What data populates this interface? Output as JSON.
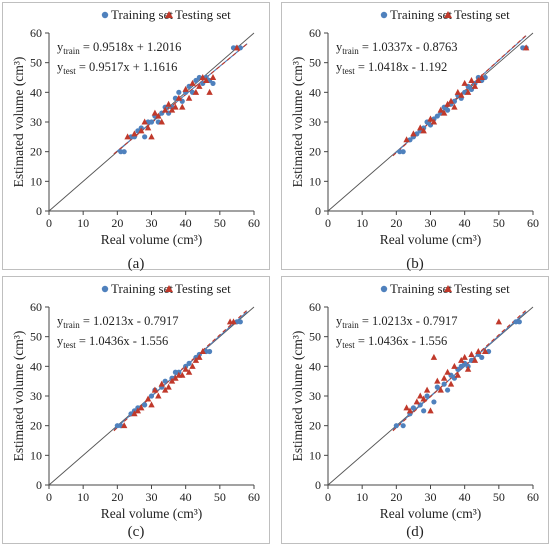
{
  "chart_data": [
    {
      "type": "scatter",
      "caption": "(a)",
      "xlabel": "Real volume (cm³)",
      "ylabel": "Estimated volume (cm³)",
      "xlim": [
        0,
        60
      ],
      "ylim": [
        0,
        60
      ],
      "xticks": [
        "0",
        "10",
        "20",
        "30",
        "40",
        "50",
        "60"
      ],
      "yticks": [
        "0",
        "10",
        "20",
        "30",
        "40",
        "50",
        "60"
      ],
      "grid": false,
      "legend_position": "top",
      "series": [
        {
          "name": "Training set",
          "marker": "circle",
          "color": "#4f81bd",
          "trend_style": "solid",
          "fit": {
            "label": "y_train = 0.9518x + 1.2016",
            "sub": "train",
            "slope": 0.9518,
            "intercept": 1.2016
          },
          "points": [
            [
              21,
              20
            ],
            [
              22,
              20
            ],
            [
              24,
              25
            ],
            [
              25,
              25
            ],
            [
              26,
              27
            ],
            [
              27,
              28
            ],
            [
              28,
              25
            ],
            [
              29,
              30
            ],
            [
              30,
              30
            ],
            [
              31,
              32
            ],
            [
              32,
              30
            ],
            [
              33,
              33
            ],
            [
              34,
              35
            ],
            [
              35,
              33
            ],
            [
              36,
              35
            ],
            [
              37,
              38
            ],
            [
              38,
              40
            ],
            [
              39,
              37
            ],
            [
              40,
              40
            ],
            [
              41,
              42
            ],
            [
              42,
              40
            ],
            [
              43,
              44
            ],
            [
              44,
              45
            ],
            [
              45,
              43
            ],
            [
              46,
              45
            ],
            [
              47,
              44
            ],
            [
              48,
              43
            ],
            [
              54,
              55
            ],
            [
              55,
              55
            ],
            [
              56,
              55
            ]
          ]
        },
        {
          "name": "Testing set",
          "marker": "triangle",
          "color": "#c0392b",
          "trend_style": "dashed",
          "fit": {
            "label": "y_test = 0.9517x + 1.1616",
            "sub": "test",
            "slope": 0.9517,
            "intercept": 1.1616
          },
          "points": [
            [
              23,
              25
            ],
            [
              25,
              26
            ],
            [
              27,
              27
            ],
            [
              28,
              30
            ],
            [
              29,
              28
            ],
            [
              30,
              25
            ],
            [
              31,
              33
            ],
            [
              32,
              32
            ],
            [
              33,
              30
            ],
            [
              34,
              34
            ],
            [
              35,
              36
            ],
            [
              36,
              34
            ],
            [
              37,
              35
            ],
            [
              38,
              38
            ],
            [
              39,
              35
            ],
            [
              40,
              41
            ],
            [
              41,
              38
            ],
            [
              42,
              43
            ],
            [
              43,
              40
            ],
            [
              44,
              42
            ],
            [
              45,
              45
            ],
            [
              46,
              44
            ],
            [
              47,
              40
            ],
            [
              48,
              45
            ],
            [
              55,
              55
            ]
          ]
        }
      ],
      "diagonal": true
    },
    {
      "type": "scatter",
      "caption": "(b)",
      "xlabel": "Real volume (cm³)",
      "ylabel": "Estimated volume (cm³)",
      "xlim": [
        0,
        60
      ],
      "ylim": [
        0,
        60
      ],
      "xticks": [
        "0",
        "10",
        "20",
        "30",
        "40",
        "50",
        "60"
      ],
      "yticks": [
        "0",
        "10",
        "20",
        "30",
        "40",
        "50",
        "60"
      ],
      "grid": false,
      "legend_position": "top",
      "series": [
        {
          "name": "Training set",
          "marker": "circle",
          "color": "#4f81bd",
          "trend_style": "solid",
          "fit": {
            "label": "y_train = 1.0337x - 0.8763",
            "sub": "train",
            "slope": 1.0337,
            "intercept": -0.8763
          },
          "points": [
            [
              21,
              20
            ],
            [
              22,
              20
            ],
            [
              24,
              24
            ],
            [
              25,
              25
            ],
            [
              26,
              26
            ],
            [
              27,
              27
            ],
            [
              28,
              28
            ],
            [
              29,
              30
            ],
            [
              30,
              29
            ],
            [
              31,
              31
            ],
            [
              32,
              32
            ],
            [
              33,
              33
            ],
            [
              34,
              35
            ],
            [
              35,
              34
            ],
            [
              36,
              36
            ],
            [
              37,
              37
            ],
            [
              38,
              39
            ],
            [
              39,
              38
            ],
            [
              40,
              40
            ],
            [
              41,
              42
            ],
            [
              42,
              41
            ],
            [
              43,
              43
            ],
            [
              44,
              45
            ],
            [
              45,
              44
            ],
            [
              46,
              45
            ],
            [
              57,
              55
            ],
            [
              58,
              55
            ]
          ]
        },
        {
          "name": "Testing set",
          "marker": "triangle",
          "color": "#c0392b",
          "trend_style": "dashed",
          "fit": {
            "label": "y_test = 1.0418x - 1.192",
            "sub": "test",
            "slope": 1.0418,
            "intercept": -1.192
          },
          "points": [
            [
              23,
              24
            ],
            [
              25,
              26
            ],
            [
              27,
              28
            ],
            [
              28,
              27
            ],
            [
              30,
              31
            ],
            [
              31,
              30
            ],
            [
              33,
              34
            ],
            [
              34,
              33
            ],
            [
              35,
              36
            ],
            [
              36,
              37
            ],
            [
              37,
              35
            ],
            [
              38,
              40
            ],
            [
              39,
              39
            ],
            [
              40,
              43
            ],
            [
              41,
              40
            ],
            [
              42,
              44
            ],
            [
              43,
              42
            ],
            [
              44,
              44
            ],
            [
              45,
              45
            ],
            [
              58,
              55
            ]
          ]
        }
      ],
      "diagonal": true
    },
    {
      "type": "scatter",
      "caption": "(c)",
      "xlabel": "Real volume (cm³)",
      "ylabel": "Estimated volume (cm³)",
      "xlim": [
        0,
        60
      ],
      "ylim": [
        0,
        60
      ],
      "xticks": [
        "0",
        "10",
        "20",
        "30",
        "40",
        "50",
        "60"
      ],
      "yticks": [
        "0",
        "10",
        "20",
        "30",
        "40",
        "50",
        "60"
      ],
      "grid": false,
      "legend_position": "top",
      "series": [
        {
          "name": "Training set",
          "marker": "circle",
          "color": "#4f81bd",
          "trend_style": "solid",
          "fit": {
            "label": "y_train = 1.0213x - 0.7917",
            "sub": "train",
            "slope": 1.0213,
            "intercept": -0.7917
          },
          "points": [
            [
              20,
              20
            ],
            [
              21,
              20
            ],
            [
              24,
              24
            ],
            [
              25,
              25
            ],
            [
              26,
              26
            ],
            [
              28,
              27
            ],
            [
              30,
              30
            ],
            [
              31,
              32
            ],
            [
              33,
              33
            ],
            [
              34,
              35
            ],
            [
              36,
              36
            ],
            [
              37,
              38
            ],
            [
              38,
              38
            ],
            [
              40,
              40
            ],
            [
              41,
              41
            ],
            [
              43,
              43
            ],
            [
              44,
              44
            ],
            [
              46,
              45
            ],
            [
              47,
              45
            ],
            [
              55,
              55
            ],
            [
              56,
              55
            ]
          ]
        },
        {
          "name": "Testing set",
          "marker": "triangle",
          "color": "#c0392b",
          "trend_style": "dashed",
          "fit": {
            "label": "y_test = 1.0436x - 1.556",
            "sub": "test",
            "slope": 1.0436,
            "intercept": -1.556
          },
          "points": [
            [
              22,
              20
            ],
            [
              25,
              24
            ],
            [
              26,
              25
            ],
            [
              27,
              26
            ],
            [
              29,
              29
            ],
            [
              30,
              27
            ],
            [
              31,
              32
            ],
            [
              32,
              30
            ],
            [
              33,
              34
            ],
            [
              34,
              32
            ],
            [
              35,
              33
            ],
            [
              36,
              35
            ],
            [
              37,
              36
            ],
            [
              38,
              37
            ],
            [
              39,
              37
            ],
            [
              40,
              39
            ],
            [
              41,
              38
            ],
            [
              42,
              40
            ],
            [
              43,
              42
            ],
            [
              44,
              43
            ],
            [
              45,
              45
            ],
            [
              53,
              55
            ],
            [
              54,
              55
            ]
          ]
        }
      ],
      "diagonal": true
    },
    {
      "type": "scatter",
      "caption": "(d)",
      "xlabel": "Real volume (cm³)",
      "ylabel": "Estimated volume (cm³)",
      "xlim": [
        0,
        60
      ],
      "ylim": [
        0,
        60
      ],
      "xticks": [
        "0",
        "10",
        "20",
        "30",
        "40",
        "50",
        "60"
      ],
      "yticks": [
        "0",
        "10",
        "20",
        "30",
        "40",
        "50",
        "60"
      ],
      "grid": false,
      "legend_position": "top",
      "series": [
        {
          "name": "Training set",
          "marker": "circle",
          "color": "#4f81bd",
          "trend_style": "solid",
          "fit": {
            "label": "y_train = 1.0213x - 0.7917",
            "sub": "train",
            "slope": 1.0213,
            "intercept": -0.7917
          },
          "points": [
            [
              20,
              20
            ],
            [
              22,
              20
            ],
            [
              24,
              24
            ],
            [
              25,
              26
            ],
            [
              27,
              27
            ],
            [
              28,
              25
            ],
            [
              29,
              30
            ],
            [
              31,
              28
            ],
            [
              32,
              33
            ],
            [
              34,
              34
            ],
            [
              35,
              32
            ],
            [
              36,
              37
            ],
            [
              37,
              36
            ],
            [
              38,
              39
            ],
            [
              39,
              40
            ],
            [
              40,
              41
            ],
            [
              41,
              40
            ],
            [
              42,
              42
            ],
            [
              44,
              44
            ],
            [
              45,
              43
            ],
            [
              47,
              45
            ],
            [
              55,
              55
            ],
            [
              56,
              55
            ]
          ]
        },
        {
          "name": "Testing set",
          "marker": "triangle",
          "color": "#c0392b",
          "trend_style": "dashed",
          "fit": {
            "label": "y_test = 1.0436x - 1.556",
            "sub": "test",
            "slope": 1.0436,
            "intercept": -1.556
          },
          "points": [
            [
              23,
              26
            ],
            [
              24,
              25
            ],
            [
              26,
              28
            ],
            [
              27,
              30
            ],
            [
              28,
              29
            ],
            [
              29,
              32
            ],
            [
              30,
              25
            ],
            [
              31,
              43
            ],
            [
              32,
              35
            ],
            [
              33,
              32
            ],
            [
              34,
              36
            ],
            [
              35,
              38
            ],
            [
              36,
              34
            ],
            [
              37,
              40
            ],
            [
              38,
              37
            ],
            [
              39,
              42
            ],
            [
              40,
              43
            ],
            [
              41,
              39
            ],
            [
              42,
              44
            ],
            [
              43,
              42
            ],
            [
              44,
              45
            ],
            [
              46,
              45
            ],
            [
              50,
              55
            ]
          ]
        }
      ],
      "diagonal": true
    }
  ]
}
